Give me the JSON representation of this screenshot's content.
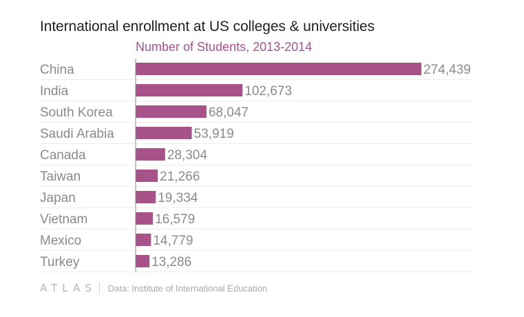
{
  "chart_data": {
    "type": "bar",
    "orientation": "horizontal",
    "title": "International enrollment at US colleges & universities",
    "subtitle": "Number of Students, 2013-2014",
    "categories": [
      "China",
      "India",
      "South Korea",
      "Saudi Arabia",
      "Canada",
      "Taiwan",
      "Japan",
      "Vietnam",
      "Mexico",
      "Turkey"
    ],
    "values": [
      274439,
      102673,
      68047,
      53919,
      28304,
      21266,
      19334,
      16579,
      14779,
      13286
    ],
    "value_labels": [
      "274,439",
      "102,673",
      "68,047",
      "53,919",
      "28,304",
      "21,266",
      "19,334",
      "16,579",
      "14,779",
      "13,286"
    ],
    "xlim": [
      0,
      274439
    ],
    "grid": true,
    "xlabel": "",
    "ylabel": "",
    "bar_color": "#a8528a"
  },
  "footer": {
    "brand": "ATLAS",
    "source": "Data: Institute of International Education"
  },
  "colors": {
    "accent": "#a8528a",
    "title": "#222222",
    "label": "#8a8a8a"
  }
}
